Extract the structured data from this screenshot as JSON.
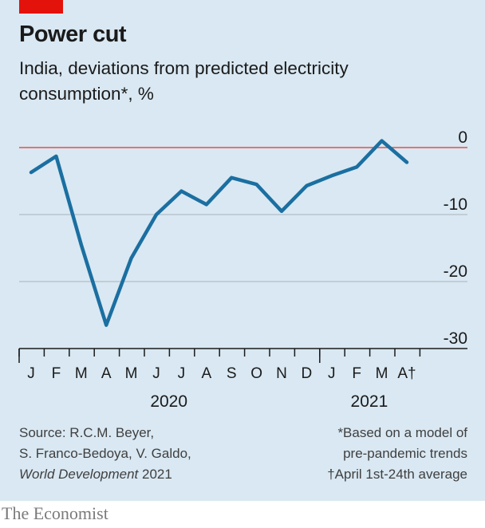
{
  "header": {
    "title": "Power cut",
    "subtitle": "India, deviations from predicted electricity consumption*, %"
  },
  "footer": {
    "source_lines": [
      "Source: R.C.M. Beyer,",
      "S. Franco-Bedoya, V. Galdo,"
    ],
    "source_italic": "World Development",
    "source_year": " 2021",
    "note_lines": [
      "*Based on a model of",
      "pre-pandemic trends",
      "†April 1st-24th average"
    ],
    "brand": "The Economist"
  },
  "colors": {
    "background": "#d9e8f2",
    "line": "#1b6fa1",
    "zero_line": "#e64f4a",
    "accent": "#e3120b",
    "grid": "#a6b5bf"
  },
  "chart_data": {
    "type": "line",
    "title": "Power cut",
    "subtitle": "India, deviations from predicted electricity consumption*, %",
    "ylim": [
      -30,
      0
    ],
    "y_ticks": [
      "0",
      "-10",
      "-20",
      "-30"
    ],
    "y_tick_values": [
      0,
      -10,
      -20,
      -30
    ],
    "grid": true,
    "categories": [
      "J",
      "F",
      "M",
      "A",
      "M",
      "J",
      "J",
      "A",
      "S",
      "O",
      "N",
      "D",
      "J",
      "F",
      "M",
      "A†"
    ],
    "year_labels": [
      {
        "label": "2020",
        "category_index": 5.5
      },
      {
        "label": "2021",
        "category_index": 13.5
      }
    ],
    "series": [
      {
        "values": [
          -3.7,
          -1.3,
          -14.5,
          -26.5,
          -16.5,
          -10.0,
          -6.5,
          -8.5,
          -4.5,
          -5.5,
          -9.5,
          -5.7,
          -4.2,
          -2.9,
          1.0,
          -2.2
        ]
      }
    ]
  }
}
